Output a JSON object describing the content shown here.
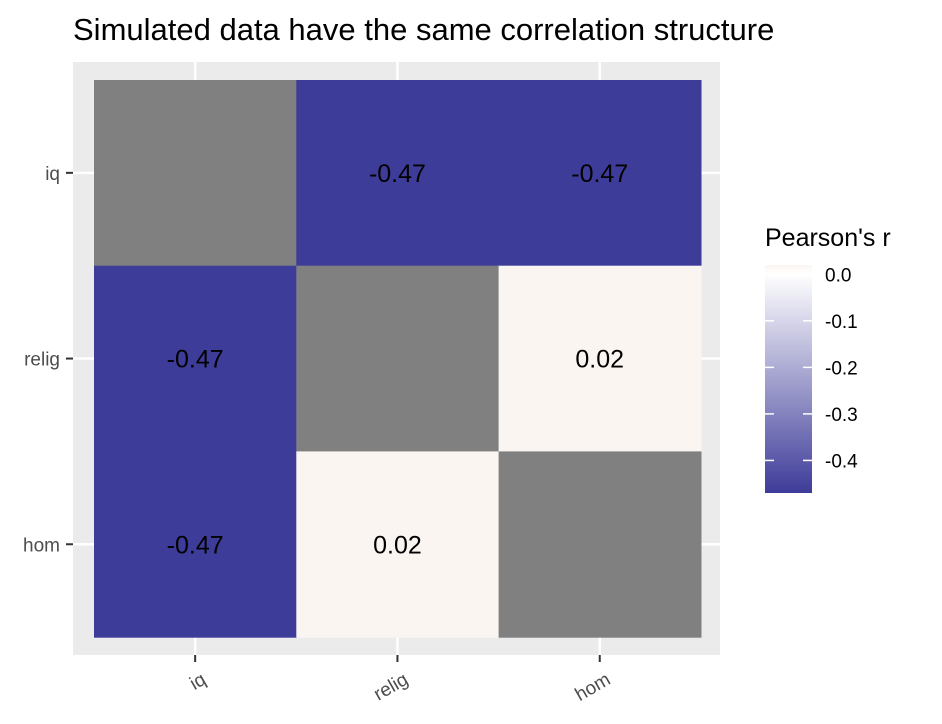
{
  "chart_data": {
    "type": "heatmap",
    "title": "Simulated data have the same correlation structure",
    "xlabel": "",
    "ylabel": "",
    "x_categories": [
      "iq",
      "relig",
      "hom"
    ],
    "y_categories": [
      "iq",
      "relig",
      "hom"
    ],
    "cells": [
      {
        "x": "iq",
        "y": "iq",
        "value": null,
        "label": ""
      },
      {
        "x": "relig",
        "y": "iq",
        "value": -0.47,
        "label": "-0.47"
      },
      {
        "x": "hom",
        "y": "iq",
        "value": -0.47,
        "label": "-0.47"
      },
      {
        "x": "iq",
        "y": "relig",
        "value": -0.47,
        "label": "-0.47"
      },
      {
        "x": "relig",
        "y": "relig",
        "value": null,
        "label": ""
      },
      {
        "x": "hom",
        "y": "relig",
        "value": 0.02,
        "label": "0.02"
      },
      {
        "x": "iq",
        "y": "hom",
        "value": -0.47,
        "label": "-0.47"
      },
      {
        "x": "relig",
        "y": "hom",
        "value": 0.02,
        "label": "0.02"
      },
      {
        "x": "hom",
        "y": "hom",
        "value": null,
        "label": ""
      }
    ],
    "na_color": "#808080",
    "legend": {
      "title": "Pearson's r",
      "position": "right",
      "range": [
        -0.47,
        0.02
      ],
      "breaks": [
        0.0,
        -0.1,
        -0.2,
        -0.3,
        -0.4
      ],
      "break_labels": [
        "0.0",
        "-0.1",
        "-0.2",
        "-0.3",
        "-0.4"
      ],
      "low_color": "#3e3c99",
      "mid_color": "#ffffff",
      "high_color": "#fbf5f2",
      "midpoint": 0.0
    },
    "panel_background": "#ebebeb",
    "grid_color": "#ffffff",
    "grid": true
  }
}
